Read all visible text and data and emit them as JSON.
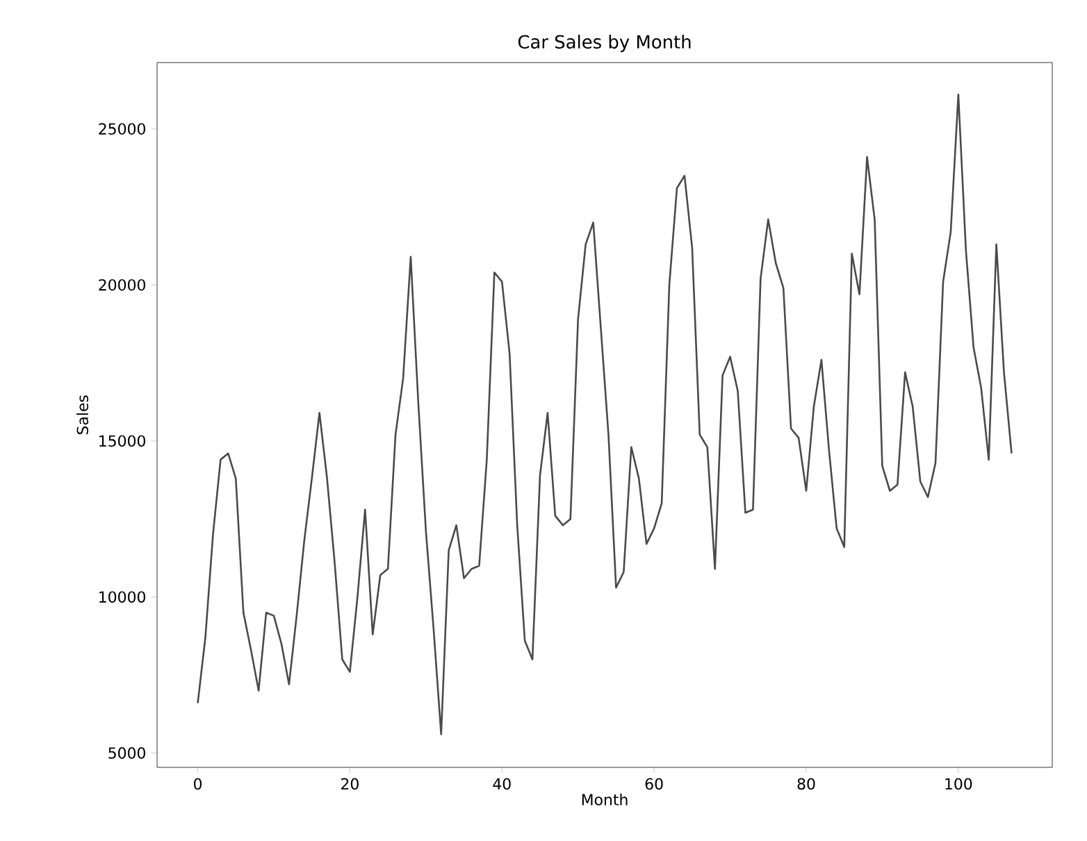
{
  "chart_data": {
    "type": "line",
    "title": "Car Sales by Month",
    "xlabel": "Month",
    "ylabel": "Sales",
    "x": [
      0,
      1,
      2,
      3,
      4,
      5,
      6,
      7,
      8,
      9,
      10,
      11,
      12,
      13,
      14,
      15,
      16,
      17,
      18,
      19,
      20,
      21,
      22,
      23,
      24,
      25,
      26,
      27,
      28,
      29,
      30,
      31,
      32,
      33,
      34,
      35,
      36,
      37,
      38,
      39,
      40,
      41,
      42,
      43,
      44,
      45,
      46,
      47,
      48,
      49,
      50,
      51,
      52,
      53,
      54,
      55,
      56,
      57,
      58,
      59,
      60,
      61,
      62,
      63,
      64,
      65,
      66,
      67,
      68,
      69,
      70,
      71,
      72,
      73,
      74,
      75,
      76,
      77,
      78,
      79,
      80,
      81,
      82,
      83,
      84,
      85,
      86,
      87,
      88,
      89,
      90,
      91,
      92,
      93,
      94,
      95,
      96,
      97,
      98,
      99,
      100,
      101,
      102,
      103,
      104,
      105,
      106,
      107
    ],
    "values": [
      6600,
      8700,
      12000,
      14400,
      14600,
      13800,
      9500,
      8300,
      7000,
      9500,
      9400,
      8500,
      7200,
      9400,
      11800,
      13800,
      15900,
      13800,
      11100,
      8000,
      7600,
      10000,
      12800,
      8800,
      10700,
      10900,
      15200,
      17000,
      20900,
      16200,
      12100,
      9000,
      5600,
      11500,
      12300,
      10600,
      10900,
      11000,
      14400,
      20400,
      20100,
      17800,
      12300,
      8600,
      8000,
      13900,
      15900,
      12600,
      12300,
      12500,
      18900,
      21300,
      22000,
      18600,
      15200,
      10300,
      10800,
      14800,
      13800,
      11700,
      12200,
      13000,
      20000,
      23100,
      23500,
      21200,
      15200,
      14800,
      10900,
      17100,
      17700,
      16600,
      12700,
      12800,
      20200,
      22100,
      20700,
      19900,
      15400,
      15100,
      13400,
      16100,
      17600,
      14700,
      12200,
      11600,
      21000,
      19700,
      24100,
      22100,
      14200,
      13400,
      13600,
      17200,
      16100,
      13700,
      13200,
      14300,
      20100,
      21700,
      26100,
      21100,
      18000,
      16700,
      14400,
      21300,
      17200,
      14600
    ],
    "color": "#4a4a4a",
    "xlim": [
      -5.35,
      112.35
    ],
    "ylim": [
      4541,
      27126
    ],
    "xticks": [
      0,
      20,
      40,
      60,
      80,
      100
    ],
    "yticks": [
      5000,
      10000,
      15000,
      20000,
      25000
    ],
    "grid": false
  }
}
